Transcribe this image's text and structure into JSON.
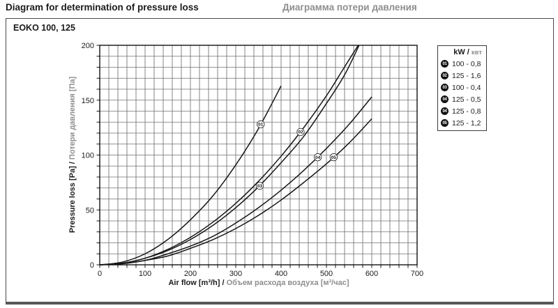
{
  "page": {
    "title_en": "Diagram for determination of pressure loss",
    "title_ru": "Диаграмма потери давления",
    "model": "EOKO 100, 125",
    "sep": " / "
  },
  "colors": {
    "title_text": "#1b1b1b",
    "secondary_text": "#8e8e8e",
    "grid": "#707070",
    "axis": "#000000",
    "curve": "#161616",
    "legend_marker_bg": "#111111",
    "legend_marker_fg": "#ffffff"
  },
  "chart_data": {
    "type": "line",
    "title": "EOKO 100, 125",
    "xlabel_en": "Air flow [m³/h]",
    "xlabel_ru": "Объем расхода воздуха [м³/час]",
    "ylabel_en": "Pressure loss [Pa]",
    "ylabel_ru": "Потери давления [Па]",
    "xlim": [
      0,
      700
    ],
    "ylim": [
      0,
      200
    ],
    "x_ticks": [
      0,
      100,
      200,
      300,
      400,
      500,
      600,
      700
    ],
    "y_ticks": [
      0,
      50,
      100,
      150,
      200
    ],
    "x_minor_step": 20,
    "y_minor_step": 10,
    "grid": true,
    "legend": {
      "header_en": "kW",
      "header_ru": "квт",
      "position": "upper right",
      "entries": [
        {
          "marker": "01",
          "label": "100 - 0,8"
        },
        {
          "marker": "02",
          "label": "125 - 1,6"
        },
        {
          "marker": "03",
          "label": "100 - 0,4"
        },
        {
          "marker": "04",
          "label": "125 - 0,5"
        },
        {
          "marker": "04",
          "label": "125 - 0,8"
        },
        {
          "marker": "05",
          "label": "125 - 1,2"
        }
      ]
    },
    "series": [
      {
        "marker": "01",
        "label": "100 - 0,8",
        "marker_at": {
          "x": 355,
          "y": 128
        },
        "points": [
          [
            0,
            0
          ],
          [
            50,
            2.5
          ],
          [
            100,
            10
          ],
          [
            150,
            23
          ],
          [
            200,
            41
          ],
          [
            250,
            63
          ],
          [
            300,
            91
          ],
          [
            350,
            124
          ],
          [
            400,
            163
          ]
        ]
      },
      {
        "marker": "02",
        "label": "125 - 1,6",
        "marker_at": {
          "x": 443,
          "y": 121
        },
        "points": [
          [
            0,
            0
          ],
          [
            50,
            1.5
          ],
          [
            100,
            6
          ],
          [
            150,
            14
          ],
          [
            200,
            25
          ],
          [
            250,
            39
          ],
          [
            300,
            56
          ],
          [
            350,
            76
          ],
          [
            400,
            99
          ],
          [
            450,
            125
          ],
          [
            500,
            154
          ],
          [
            535,
            177
          ],
          [
            570,
            200
          ]
        ]
      },
      {
        "marker": "03",
        "label": "100 - 0,4",
        "marker_at": {
          "x": 353,
          "y": 72
        },
        "points": [
          [
            0,
            0
          ],
          [
            50,
            1.4
          ],
          [
            100,
            6
          ],
          [
            150,
            13
          ],
          [
            200,
            23
          ],
          [
            250,
            36
          ],
          [
            300,
            52
          ],
          [
            350,
            71
          ],
          [
            400,
            93
          ],
          [
            450,
            117
          ],
          [
            500,
            147
          ],
          [
            540,
            173
          ],
          [
            572,
            200
          ]
        ]
      },
      {
        "marker": "04",
        "label": "125 - 0,5 / 125 - 0,8",
        "marker_at": {
          "x": 481,
          "y": 98
        },
        "points": [
          [
            0,
            0
          ],
          [
            50,
            1
          ],
          [
            100,
            4
          ],
          [
            150,
            10
          ],
          [
            200,
            17
          ],
          [
            250,
            26
          ],
          [
            300,
            38
          ],
          [
            350,
            52
          ],
          [
            400,
            68
          ],
          [
            450,
            86
          ],
          [
            500,
            106
          ],
          [
            550,
            128
          ],
          [
            600,
            153
          ]
        ]
      },
      {
        "marker": "05",
        "label": "125 - 1,2",
        "marker_at": {
          "x": 516,
          "y": 98
        },
        "points": [
          [
            0,
            0
          ],
          [
            50,
            1
          ],
          [
            100,
            4
          ],
          [
            150,
            8
          ],
          [
            200,
            15
          ],
          [
            250,
            23
          ],
          [
            300,
            33
          ],
          [
            350,
            45
          ],
          [
            400,
            59
          ],
          [
            450,
            75
          ],
          [
            500,
            92
          ],
          [
            550,
            111
          ],
          [
            600,
            133
          ]
        ]
      }
    ]
  }
}
